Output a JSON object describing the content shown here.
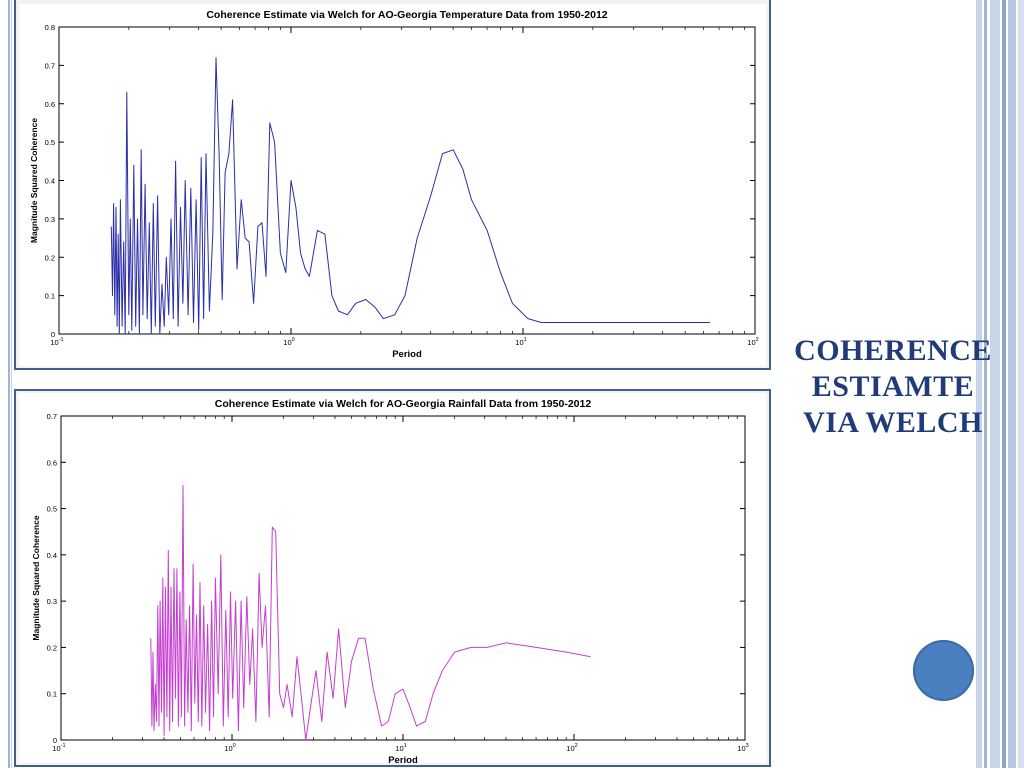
{
  "slide": {
    "title_lines": [
      "COHERENCE",
      "ESTIAMTE",
      "VIA WELCH"
    ],
    "accent_color": "#1f3c78",
    "dot_color": "#4a7fc0"
  },
  "chart_data": [
    {
      "type": "line",
      "title": "Coherence Estimate via Welch for AO-Georgia Temperature Data from 1950-2012",
      "xlabel": "Period",
      "ylabel": "Magnitude Squared Coherence",
      "xscale": "log",
      "xlim": [
        0.1,
        100
      ],
      "ylim": [
        0,
        0.8
      ],
      "yticks": [
        0,
        0.1,
        0.2,
        0.3,
        0.4,
        0.5,
        0.6,
        0.7,
        0.8
      ],
      "ytick_labels": [
        "0",
        "0.1",
        "0.2",
        "0.3",
        "0.4",
        "0.5",
        "0.6",
        "0.7",
        "0.8"
      ],
      "xtick_labels": [
        {
          "base": "10",
          "exp": "-1"
        },
        {
          "base": "10",
          "exp": "0"
        },
        {
          "base": "10",
          "exp": "1"
        },
        {
          "base": "10",
          "exp": "2"
        }
      ],
      "grid": false,
      "color": "#2b2fa8",
      "series": [
        {
          "x": [
            0.168,
            0.17,
            0.172,
            0.174,
            0.176,
            0.178,
            0.18,
            0.182,
            0.184,
            0.187,
            0.19,
            0.193,
            0.196,
            0.2,
            0.203,
            0.206,
            0.21,
            0.214,
            0.218,
            0.222,
            0.226,
            0.23,
            0.235,
            0.24,
            0.245,
            0.25,
            0.255,
            0.26,
            0.266,
            0.272,
            0.278,
            0.284,
            0.29,
            0.297,
            0.304,
            0.311,
            0.318,
            0.326,
            0.334,
            0.342,
            0.35,
            0.36,
            0.37,
            0.38,
            0.39,
            0.4,
            0.41,
            0.42,
            0.43,
            0.445,
            0.46,
            0.475,
            0.49,
            0.505,
            0.52,
            0.54,
            0.56,
            0.585,
            0.61,
            0.635,
            0.66,
            0.69,
            0.72,
            0.75,
            0.78,
            0.81,
            0.85,
            0.9,
            0.95,
            1.0,
            1.05,
            1.1,
            1.15,
            1.2,
            1.3,
            1.4,
            1.5,
            1.6,
            1.75,
            1.9,
            2.1,
            2.3,
            2.5,
            2.8,
            3.1,
            3.5,
            4.0,
            4.5,
            5.0,
            5.5,
            6.0,
            7.0,
            8.0,
            9.0,
            10.5,
            12.0,
            15.0,
            20.0,
            32.0,
            64.0
          ],
          "y": [
            0.28,
            0.1,
            0.34,
            0.05,
            0.33,
            0.02,
            0.26,
            0.0,
            0.35,
            0.02,
            0.24,
            0.0,
            0.63,
            0.05,
            0.3,
            0.01,
            0.44,
            0.02,
            0.3,
            0.0,
            0.48,
            0.05,
            0.39,
            0.04,
            0.29,
            0.0,
            0.34,
            0.02,
            0.36,
            0.0,
            0.13,
            0.02,
            0.2,
            0.05,
            0.3,
            0.04,
            0.45,
            0.02,
            0.33,
            0.08,
            0.4,
            0.05,
            0.38,
            0.03,
            0.35,
            0.01,
            0.46,
            0.04,
            0.47,
            0.06,
            0.26,
            0.72,
            0.47,
            0.09,
            0.42,
            0.47,
            0.61,
            0.17,
            0.35,
            0.25,
            0.24,
            0.08,
            0.28,
            0.29,
            0.15,
            0.55,
            0.5,
            0.21,
            0.16,
            0.4,
            0.33,
            0.21,
            0.17,
            0.15,
            0.27,
            0.26,
            0.1,
            0.06,
            0.05,
            0.08,
            0.09,
            0.07,
            0.04,
            0.05,
            0.1,
            0.25,
            0.36,
            0.47,
            0.48,
            0.43,
            0.35,
            0.27,
            0.16,
            0.08,
            0.04,
            0.03,
            0.03,
            0.03,
            0.03,
            0.03
          ]
        }
      ]
    },
    {
      "type": "line",
      "title": "Coherence Estimate via Welch for AO-Georgia Rainfall Data from 1950-2012",
      "xlabel": "Period",
      "ylabel": "Magnitude Squared Coherence",
      "xscale": "log",
      "xlim": [
        0.1,
        1000
      ],
      "ylim": [
        0,
        0.7
      ],
      "yticks": [
        0,
        0.1,
        0.2,
        0.3,
        0.4,
        0.5,
        0.6,
        0.7
      ],
      "ytick_labels": [
        "0",
        "0.1",
        "0.2",
        "0.3",
        "0.4",
        "0.5",
        "0.6",
        "0.7"
      ],
      "xtick_labels": [
        {
          "base": "10",
          "exp": "-1"
        },
        {
          "base": "10",
          "exp": "0"
        },
        {
          "base": "10",
          "exp": "1"
        },
        {
          "base": "10",
          "exp": "2"
        },
        {
          "base": "10",
          "exp": "3"
        }
      ],
      "grid": false,
      "color": "#c43ed0",
      "series": [
        {
          "x": [
            0.335,
            0.34,
            0.345,
            0.35,
            0.356,
            0.362,
            0.368,
            0.374,
            0.38,
            0.387,
            0.394,
            0.401,
            0.408,
            0.416,
            0.424,
            0.432,
            0.44,
            0.449,
            0.458,
            0.467,
            0.476,
            0.486,
            0.496,
            0.506,
            0.517,
            0.528,
            0.54,
            0.552,
            0.565,
            0.578,
            0.592,
            0.606,
            0.62,
            0.635,
            0.65,
            0.666,
            0.683,
            0.7,
            0.72,
            0.74,
            0.76,
            0.78,
            0.8,
            0.83,
            0.86,
            0.89,
            0.92,
            0.95,
            0.98,
            1.01,
            1.05,
            1.09,
            1.13,
            1.17,
            1.22,
            1.27,
            1.32,
            1.38,
            1.44,
            1.5,
            1.57,
            1.65,
            1.72,
            1.8,
            1.9,
            2.0,
            2.1,
            2.25,
            2.4,
            2.55,
            2.7,
            2.9,
            3.1,
            3.35,
            3.6,
            3.9,
            4.2,
            4.6,
            5.0,
            5.5,
            6.0,
            6.7,
            7.5,
            8.2,
            9.0,
            10.0,
            11.0,
            12.0,
            13.5,
            15.0,
            17.0,
            20.0,
            25.0,
            31.0,
            40.0,
            60.0,
            90.0,
            125.0
          ],
          "y": [
            0.22,
            0.03,
            0.19,
            0.02,
            0.12,
            0.04,
            0.29,
            0.03,
            0.3,
            0.06,
            0.35,
            0.01,
            0.33,
            0.05,
            0.41,
            0.02,
            0.33,
            0.04,
            0.37,
            0.09,
            0.37,
            0.03,
            0.32,
            0.05,
            0.55,
            0.03,
            0.26,
            0.06,
            0.29,
            0.02,
            0.38,
            0.08,
            0.27,
            0.04,
            0.34,
            0.03,
            0.29,
            0.06,
            0.25,
            0.02,
            0.3,
            0.05,
            0.35,
            0.1,
            0.4,
            0.03,
            0.28,
            0.05,
            0.32,
            0.09,
            0.3,
            0.02,
            0.3,
            0.07,
            0.31,
            0.12,
            0.24,
            0.04,
            0.36,
            0.2,
            0.29,
            0.05,
            0.46,
            0.45,
            0.1,
            0.07,
            0.12,
            0.05,
            0.18,
            0.09,
            0.0,
            0.08,
            0.15,
            0.04,
            0.19,
            0.09,
            0.24,
            0.07,
            0.17,
            0.22,
            0.22,
            0.11,
            0.03,
            0.04,
            0.1,
            0.11,
            0.07,
            0.03,
            0.04,
            0.1,
            0.15,
            0.19,
            0.2,
            0.2,
            0.21,
            0.2,
            0.19,
            0.18
          ]
        }
      ]
    }
  ]
}
